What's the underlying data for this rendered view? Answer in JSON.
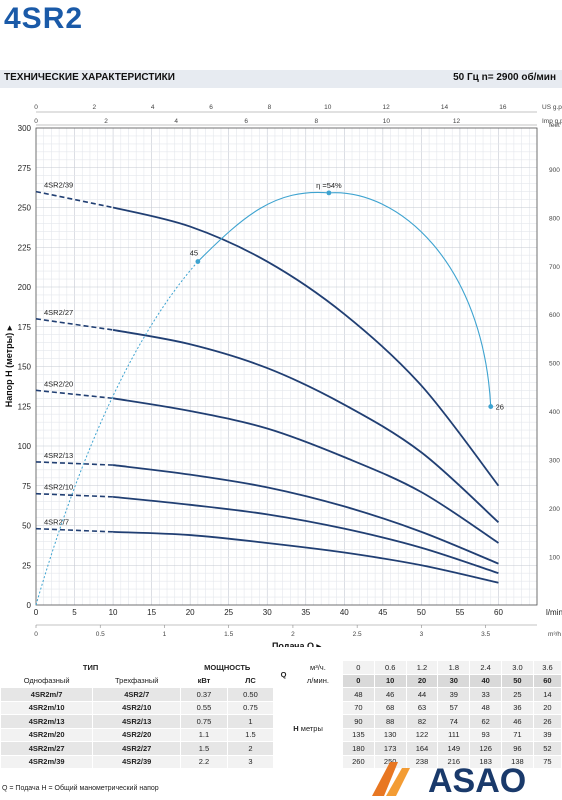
{
  "title": "4SR2",
  "spec": {
    "left": "ТЕХНИЧЕСКИЕ ХАРАКТЕРИСТИКИ",
    "right": "50 Гц   n= 2900 об/мин"
  },
  "chart_data": {
    "type": "line",
    "x_primary": {
      "label": "Подача Q",
      "unit": "l/min",
      "lim": [
        0,
        65
      ],
      "ticks": [
        0,
        5,
        10,
        15,
        20,
        25,
        30,
        35,
        40,
        45,
        50,
        55,
        60
      ]
    },
    "x_m3h": {
      "unit": "m³/h",
      "ticks": [
        0,
        0.5,
        1,
        1.5,
        2,
        2.5,
        3,
        3.5
      ],
      "tick_labels": [
        "0",
        "0.5",
        "1",
        "1.5",
        "2",
        "2.5",
        "3",
        "3.5"
      ]
    },
    "x_us": {
      "unit": "US g.p.m.",
      "ticks": [
        0,
        2,
        4,
        6,
        8,
        10,
        12,
        14,
        16
      ],
      "tick_labels": [
        "0",
        "2",
        "4",
        "6",
        "8",
        "10",
        "12",
        "14",
        "16"
      ]
    },
    "x_imp": {
      "unit": "Imp g.p.m.",
      "ticks": [
        0,
        2,
        4,
        6,
        8,
        10,
        12
      ],
      "tick_labels": [
        "0",
        "2",
        "4",
        "6",
        "8",
        "10",
        "12"
      ]
    },
    "y_primary": {
      "label": "Напор H (метры)",
      "lim": [
        0,
        300
      ],
      "ticks": [
        0,
        25,
        50,
        75,
        100,
        125,
        150,
        175,
        200,
        225,
        250,
        275,
        300
      ]
    },
    "y_feet": {
      "unit": "feet",
      "ticks": [
        0,
        100,
        200,
        300,
        400,
        500,
        600,
        700,
        800,
        900
      ],
      "tick_labels": [
        "0",
        "100",
        "200",
        "300",
        "400",
        "500",
        "600",
        "700",
        "800",
        "900"
      ]
    },
    "grid": true,
    "x": [
      0,
      10,
      20,
      30,
      40,
      50,
      60
    ],
    "series": [
      {
        "name": "4SR2/7",
        "values": [
          48,
          46,
          44,
          39,
          33,
          25,
          14
        ]
      },
      {
        "name": "4SR2/10",
        "values": [
          70,
          68,
          63,
          57,
          48,
          36,
          20
        ]
      },
      {
        "name": "4SR2/13",
        "values": [
          90,
          88,
          82,
          74,
          62,
          46,
          26
        ]
      },
      {
        "name": "4SR2/20",
        "values": [
          135,
          130,
          122,
          111,
          93,
          71,
          39
        ]
      },
      {
        "name": "4SR2/27",
        "values": [
          180,
          173,
          164,
          149,
          126,
          96,
          52
        ]
      },
      {
        "name": "4SR2/39",
        "values": [
          260,
          250,
          238,
          216,
          183,
          138,
          75
        ]
      }
    ],
    "efficiency": {
      "points": [
        [
          0,
          0
        ],
        [
          21,
          45
        ],
        [
          38,
          54
        ],
        [
          59,
          26
        ]
      ],
      "labels": [
        "45",
        "η =54%",
        "26"
      ]
    }
  },
  "table": {
    "type_header": "ТИП",
    "power_header": "МОЩНОСТЬ",
    "q_header": "Q",
    "unit_m3h": "м³/ч.",
    "unit_lmin": "л/мин.",
    "col_single": "Однофазный",
    "col_three": "Трехфазный",
    "col_kw": "кВт",
    "col_hp": "ЛС",
    "h_label": "H",
    "h_unit": "метры",
    "q_m3h": [
      "0",
      "0.6",
      "1.2",
      "1.8",
      "2.4",
      "3.0",
      "3.6"
    ],
    "q_lmin": [
      "0",
      "10",
      "20",
      "30",
      "40",
      "50",
      "60"
    ],
    "rows": [
      {
        "single": "4SR2m/7",
        "three": "4SR2/7",
        "kw": "0.37",
        "hp": "0.50",
        "h": [
          "48",
          "46",
          "44",
          "39",
          "33",
          "25",
          "14"
        ]
      },
      {
        "single": "4SR2m/10",
        "three": "4SR2/10",
        "kw": "0.55",
        "hp": "0.75",
        "h": [
          "70",
          "68",
          "63",
          "57",
          "48",
          "36",
          "20"
        ]
      },
      {
        "single": "4SR2m/13",
        "three": "4SR2/13",
        "kw": "0.75",
        "hp": "1",
        "h": [
          "90",
          "88",
          "82",
          "74",
          "62",
          "46",
          "26"
        ]
      },
      {
        "single": "4SR2m/20",
        "three": "4SR2/20",
        "kw": "1.1",
        "hp": "1.5",
        "h": [
          "135",
          "130",
          "122",
          "111",
          "93",
          "71",
          "39"
        ]
      },
      {
        "single": "4SR2m/27",
        "three": "4SR2/27",
        "kw": "1.5",
        "hp": "2",
        "h": [
          "180",
          "173",
          "164",
          "149",
          "126",
          "96",
          "52"
        ]
      },
      {
        "single": "4SR2m/39",
        "three": "4SR2/39",
        "kw": "2.2",
        "hp": "3",
        "h": [
          "260",
          "250",
          "238",
          "216",
          "183",
          "138",
          "75"
        ]
      }
    ]
  },
  "footer": "Q = Подача  H = Общий манометрический напор",
  "logo_text": "ASAO",
  "colors": {
    "title": "#1a5aa8",
    "curve": "#213f73",
    "efficiency": "#3ea3d0"
  }
}
